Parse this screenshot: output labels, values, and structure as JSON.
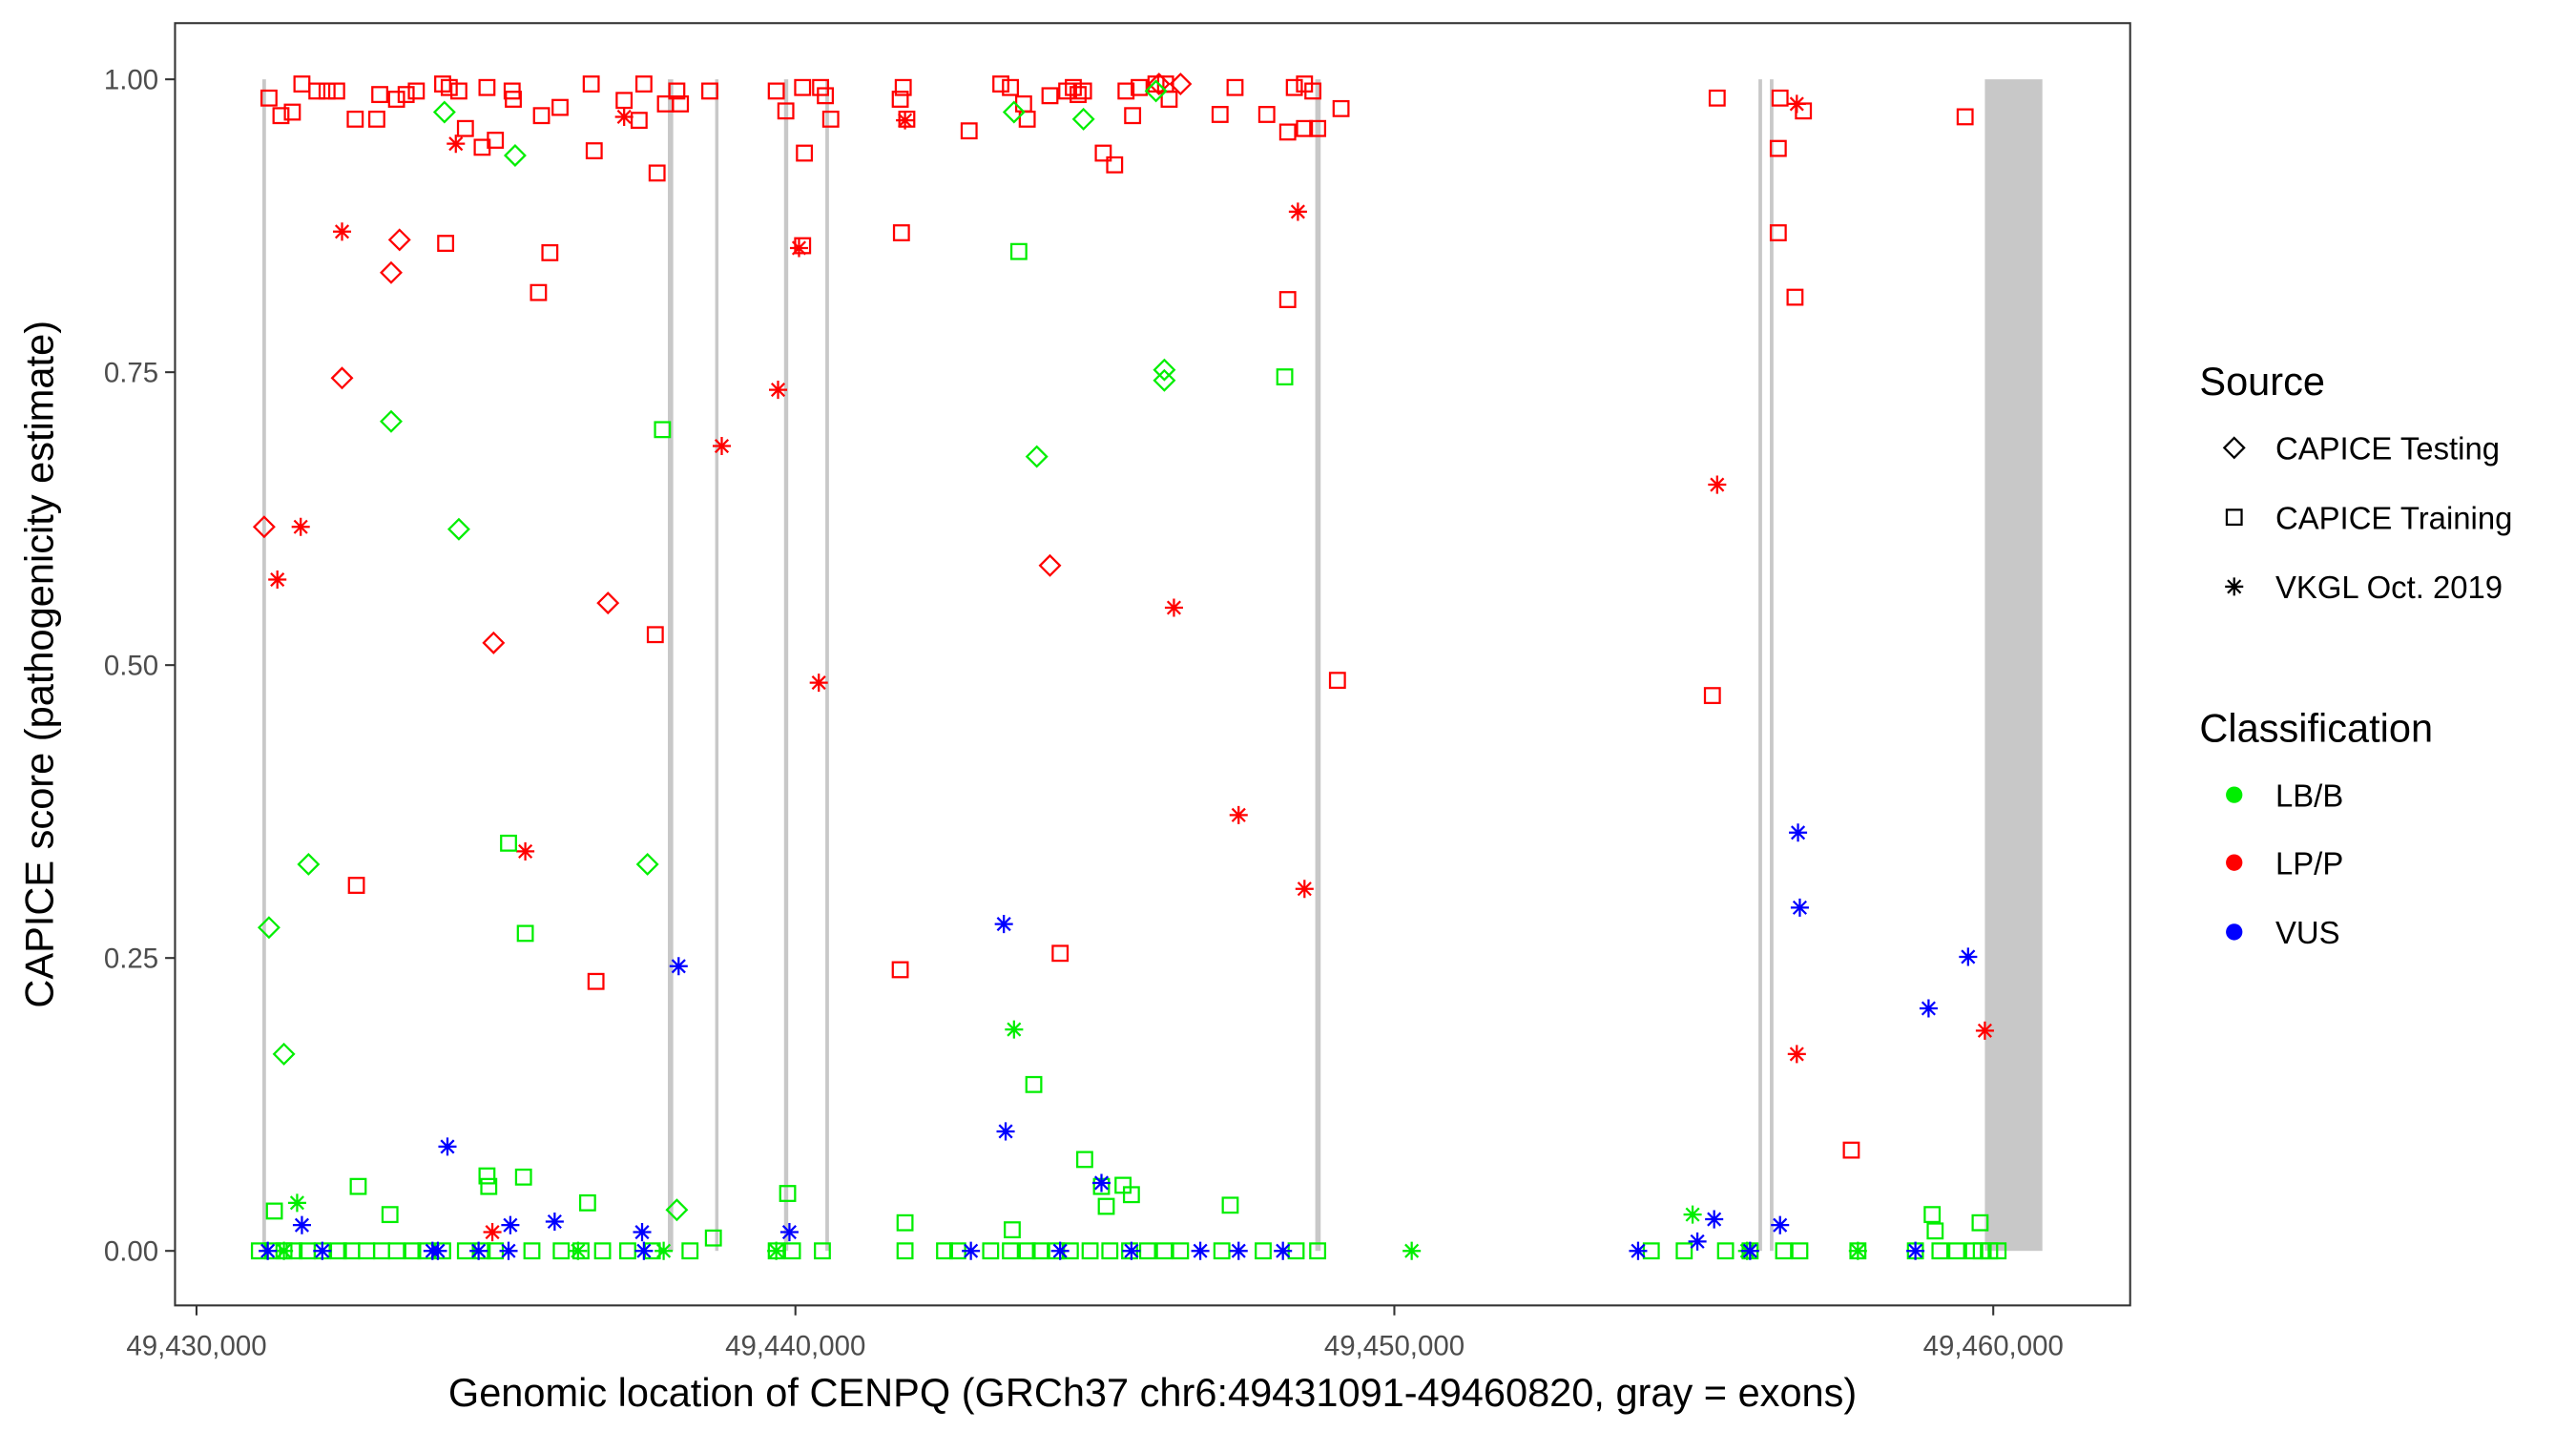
{
  "chart_data": {
    "type": "scatter",
    "xlabel": "Genomic location of CENPQ (GRCh37 chr6:49431091-49460820, gray = exons)",
    "ylabel": "CAPICE score (pathogenicity estimate)",
    "xlim": [
      49429650,
      49462300
    ],
    "ylim": [
      -0.045,
      1.05
    ],
    "x_ticks": [
      49430000,
      49440000,
      49450000,
      49460000
    ],
    "x_tick_labels": [
      "49,430,000",
      "49,440,000",
      "49,450,000",
      "49,460,000"
    ],
    "y_ticks": [
      0,
      0.25,
      0.5,
      0.75,
      1.0
    ],
    "y_tick_labels": [
      "0.00",
      "0.25",
      "0.50",
      "0.75",
      "1.00"
    ],
    "grid": false,
    "legend_placement": "right",
    "exons": [
      [
        49431100,
        49431160
      ],
      [
        49437870,
        49437960
      ],
      [
        49438660,
        49438710
      ],
      [
        49439810,
        49439880
      ],
      [
        49440500,
        49440560
      ],
      [
        49448680,
        49448770
      ],
      [
        49456080,
        49456140
      ],
      [
        49456270,
        49456330
      ],
      [
        49459860,
        49460820
      ]
    ],
    "exon_color": "#c8c8c8",
    "legend": {
      "source_title": "Source",
      "sources": [
        {
          "label": "CAPICE Testing",
          "shape": "diamond"
        },
        {
          "label": "CAPICE Training",
          "shape": "square"
        },
        {
          "label": "VKGL Oct. 2019",
          "shape": "asterisk"
        }
      ],
      "classification_title": "Classification",
      "classes": [
        {
          "label": "LB/B",
          "color": "#00ee00"
        },
        {
          "label": "LP/P",
          "color": "#ff0000"
        },
        {
          "label": "VUS",
          "color": "#0000ff"
        }
      ]
    },
    "series": [
      {
        "source": "CAPICE Training",
        "classification": "LP/P",
        "points": [
          [
            49431210,
            0.984
          ],
          [
            49431410,
            0.969
          ],
          [
            49431600,
            0.972
          ],
          [
            49431760,
            0.996
          ],
          [
            49432010,
            0.99
          ],
          [
            49432180,
            0.99
          ],
          [
            49432340,
            0.99
          ],
          [
            49432650,
            0.966
          ],
          [
            49433010,
            0.966
          ],
          [
            49433060,
            0.987
          ],
          [
            49433340,
            0.983
          ],
          [
            49433500,
            0.987
          ],
          [
            49433670,
            0.99
          ],
          [
            49434110,
            0.996
          ],
          [
            49434220,
            0.993
          ],
          [
            49434490,
            0.958
          ],
          [
            49434380,
            0.99
          ],
          [
            49434770,
            0.942
          ],
          [
            49434850,
            0.993
          ],
          [
            49434990,
            0.948
          ],
          [
            49435270,
            0.99
          ],
          [
            49435290,
            0.983
          ],
          [
            49435760,
            0.969
          ],
          [
            49436070,
            0.976
          ],
          [
            49436590,
            0.996
          ],
          [
            49436640,
            0.939
          ],
          [
            49437140,
            0.982
          ],
          [
            49437470,
            0.996
          ],
          [
            49437390,
            0.965
          ],
          [
            49437690,
            0.92
          ],
          [
            49437830,
            0.979
          ],
          [
            49438020,
            0.99
          ],
          [
            49438080,
            0.979
          ],
          [
            49438570,
            0.99
          ],
          [
            49439680,
            0.99
          ],
          [
            49439840,
            0.973
          ],
          [
            49440120,
            0.993
          ],
          [
            49440150,
            0.937
          ],
          [
            49440420,
            0.993
          ],
          [
            49440500,
            0.986
          ],
          [
            49440590,
            0.966
          ],
          [
            49441750,
            0.983
          ],
          [
            49441800,
            0.993
          ],
          [
            49441860,
            0.966
          ],
          [
            49442900,
            0.956
          ],
          [
            49443430,
            0.996
          ],
          [
            49443590,
            0.993
          ],
          [
            49443810,
            0.979
          ],
          [
            49443870,
            0.966
          ],
          [
            49444250,
            0.986
          ],
          [
            49444530,
            0.99
          ],
          [
            49444640,
            0.993
          ],
          [
            49444720,
            0.987
          ],
          [
            49444810,
            0.99
          ],
          [
            49445140,
            0.937
          ],
          [
            49445330,
            0.927
          ],
          [
            49445520,
            0.99
          ],
          [
            49445630,
            0.969
          ],
          [
            49445740,
            0.993
          ],
          [
            49446020,
            0.996
          ],
          [
            49446240,
            0.983
          ],
          [
            49446180,
            0.996
          ],
          [
            49447090,
            0.97
          ],
          [
            49447340,
            0.993
          ],
          [
            49447870,
            0.97
          ],
          [
            49448220,
            0.955
          ],
          [
            49448330,
            0.993
          ],
          [
            49448500,
            0.996
          ],
          [
            49448500,
            0.958
          ],
          [
            49448640,
            0.99
          ],
          [
            49448720,
            0.958
          ],
          [
            49449110,
            0.975
          ],
          [
            49455390,
            0.984
          ],
          [
            49456440,
            0.984
          ],
          [
            49456410,
            0.941
          ],
          [
            49456830,
            0.973
          ],
          [
            49434160,
            0.86
          ],
          [
            49435900,
            0.852
          ],
          [
            49435710,
            0.818
          ],
          [
            49432670,
            0.312
          ],
          [
            49436670,
            0.23
          ],
          [
            49437660,
            0.526
          ],
          [
            49441770,
            0.869
          ],
          [
            49441750,
            0.24
          ],
          [
            49444420,
            0.254
          ],
          [
            49448220,
            0.812
          ],
          [
            49449050,
            0.487
          ],
          [
            49455310,
            0.474
          ],
          [
            49456410,
            0.869
          ],
          [
            49456690,
            0.814
          ],
          [
            49457630,
            0.086
          ],
          [
            49459530,
            0.968
          ],
          [
            49440120,
            0.858
          ]
        ]
      },
      {
        "source": "CAPICE Testing",
        "classification": "LP/P",
        "points": [
          [
            49431130,
            0.618
          ],
          [
            49432430,
            0.745
          ],
          [
            49433250,
            0.835
          ],
          [
            49433390,
            0.863
          ],
          [
            49434960,
            0.519
          ],
          [
            49436870,
            0.553
          ],
          [
            49444250,
            0.585
          ],
          [
            49446430,
            0.996
          ],
          [
            49446070,
            0.996
          ]
        ]
      },
      {
        "source": "VKGL Oct. 2019",
        "classification": "LP/P",
        "points": [
          [
            49431350,
            0.573
          ],
          [
            49431740,
            0.618
          ],
          [
            49432430,
            0.87
          ],
          [
            49434330,
            0.945
          ],
          [
            49435490,
            0.341
          ],
          [
            49437140,
            0.968
          ],
          [
            49438770,
            0.687
          ],
          [
            49439710,
            0.735
          ],
          [
            49440060,
            0.856
          ],
          [
            49440390,
            0.485
          ],
          [
            49441830,
            0.965
          ],
          [
            49446320,
            0.549
          ],
          [
            49447400,
            0.372
          ],
          [
            49448390,
            0.887
          ],
          [
            49448500,
            0.309
          ],
          [
            49455390,
            0.654
          ],
          [
            49456720,
            0.979
          ],
          [
            49456720,
            0.168
          ],
          [
            49459860,
            0.188
          ],
          [
            49434940,
            0.016
          ]
        ]
      },
      {
        "source": "CAPICE Testing",
        "classification": "LB/B",
        "points": [
          [
            49434140,
            0.972
          ],
          [
            49435320,
            0.935
          ],
          [
            49433250,
            0.708
          ],
          [
            49434380,
            0.616
          ],
          [
            49431210,
            0.276
          ],
          [
            49431870,
            0.33
          ],
          [
            49431460,
            0.168
          ],
          [
            49437530,
            0.33
          ],
          [
            49438020,
            0.035
          ],
          [
            49443650,
            0.972
          ],
          [
            49444810,
            0.966
          ],
          [
            49444030,
            0.678
          ],
          [
            49446160,
            0.752
          ],
          [
            49446160,
            0.743
          ],
          [
            49446020,
            0.99
          ]
        ]
      },
      {
        "source": "CAPICE Training",
        "classification": "LB/B",
        "points": [
          [
            49437780,
            0.701
          ],
          [
            49435210,
            0.348
          ],
          [
            49435490,
            0.271
          ],
          [
            49443730,
            0.853
          ],
          [
            49448170,
            0.746
          ],
          [
            49443980,
            0.142
          ],
          [
            49444830,
            0.078
          ],
          [
            49445110,
            0.055
          ],
          [
            49445190,
            0.038
          ],
          [
            49445470,
            0.056
          ],
          [
            49445610,
            0.048
          ],
          [
            49447260,
            0.039
          ],
          [
            49432700,
            0.055
          ],
          [
            49434850,
            0.064
          ],
          [
            49434880,
            0.055
          ],
          [
            49435460,
            0.063
          ],
          [
            49433230,
            0.031
          ],
          [
            49431300,
            0.034
          ],
          [
            49436530,
            0.041
          ],
          [
            49439870,
            0.049
          ],
          [
            49441830,
            0.024
          ],
          [
            49458980,
            0.031
          ],
          [
            49459030,
            0.017
          ],
          [
            49459780,
            0.024
          ],
          [
            49438630,
            0.011
          ],
          [
            49443620,
            0.018
          ],
          [
            49431050,
            0
          ],
          [
            49431270,
            0
          ],
          [
            49431460,
            0
          ],
          [
            49431630,
            0
          ],
          [
            49431850,
            0
          ],
          [
            49432100,
            0
          ],
          [
            49432370,
            0
          ],
          [
            49432590,
            0
          ],
          [
            49432840,
            0
          ],
          [
            49433090,
            0
          ],
          [
            49433340,
            0
          ],
          [
            49433610,
            0
          ],
          [
            49433830,
            0
          ],
          [
            49434110,
            0
          ],
          [
            49434490,
            0
          ],
          [
            49434770,
            0
          ],
          [
            49434990,
            0
          ],
          [
            49435600,
            0
          ],
          [
            49436090,
            0
          ],
          [
            49436420,
            0
          ],
          [
            49436780,
            0
          ],
          [
            49437200,
            0
          ],
          [
            49437610,
            0
          ],
          [
            49438240,
            0
          ],
          [
            49439680,
            0
          ],
          [
            49439950,
            0
          ],
          [
            49440450,
            0
          ],
          [
            49441830,
            0
          ],
          [
            49442490,
            0
          ],
          [
            49442710,
            0
          ],
          [
            49443260,
            0
          ],
          [
            49443590,
            0
          ],
          [
            49443870,
            0
          ],
          [
            49444090,
            0
          ],
          [
            49444360,
            0
          ],
          [
            49444590,
            0
          ],
          [
            49444920,
            0
          ],
          [
            49445250,
            0
          ],
          [
            49445580,
            0
          ],
          [
            49445880,
            0
          ],
          [
            49446160,
            0
          ],
          [
            49446430,
            0
          ],
          [
            49447120,
            0
          ],
          [
            49447810,
            0
          ],
          [
            49448360,
            0
          ],
          [
            49448720,
            0
          ],
          [
            49454290,
            0
          ],
          [
            49454840,
            0
          ],
          [
            49455530,
            0
          ],
          [
            49455940,
            0
          ],
          [
            49456500,
            0
          ],
          [
            49456770,
            0
          ],
          [
            49457740,
            0
          ],
          [
            49458700,
            0
          ],
          [
            49459110,
            0
          ],
          [
            49459390,
            0
          ],
          [
            49459670,
            0
          ],
          [
            49459800,
            0
          ],
          [
            49459940,
            0
          ],
          [
            49460080,
            0
          ]
        ]
      },
      {
        "source": "VKGL Oct. 2019",
        "classification": "LB/B",
        "points": [
          [
            49443650,
            0.189
          ],
          [
            49431680,
            0.041
          ],
          [
            49454980,
            0.031
          ],
          [
            49450290,
            0
          ],
          [
            49431460,
            0
          ],
          [
            49436370,
            0
          ],
          [
            49437800,
            0
          ],
          [
            49439680,
            0
          ],
          [
            49455890,
            0
          ],
          [
            49457740,
            0
          ]
        ]
      },
      {
        "source": "VKGL Oct. 2019",
        "classification": "VUS",
        "points": [
          [
            49443480,
            0.279
          ],
          [
            49443510,
            0.102
          ],
          [
            49445110,
            0.058
          ],
          [
            49434190,
            0.089
          ],
          [
            49438050,
            0.243
          ],
          [
            49456740,
            0.357
          ],
          [
            49456770,
            0.293
          ],
          [
            49459580,
            0.251
          ],
          [
            49458920,
            0.207
          ],
          [
            49439900,
            0.016
          ],
          [
            49437440,
            0.016
          ],
          [
            49435980,
            0.025
          ],
          [
            49435240,
            0.022
          ],
          [
            49431760,
            0.022
          ],
          [
            49455340,
            0.027
          ],
          [
            49456440,
            0.022
          ],
          [
            49455060,
            0.008
          ],
          [
            49431190,
            0
          ],
          [
            49432100,
            0
          ],
          [
            49433940,
            0
          ],
          [
            49434030,
            0
          ],
          [
            49434710,
            0
          ],
          [
            49435210,
            0
          ],
          [
            49437470,
            0
          ],
          [
            49442930,
            0
          ],
          [
            49444420,
            0
          ],
          [
            49445610,
            0
          ],
          [
            49446760,
            0
          ],
          [
            49447400,
            0
          ],
          [
            49448140,
            0
          ],
          [
            49454070,
            0
          ],
          [
            49455940,
            0
          ],
          [
            49458700,
            0
          ]
        ]
      }
    ]
  }
}
